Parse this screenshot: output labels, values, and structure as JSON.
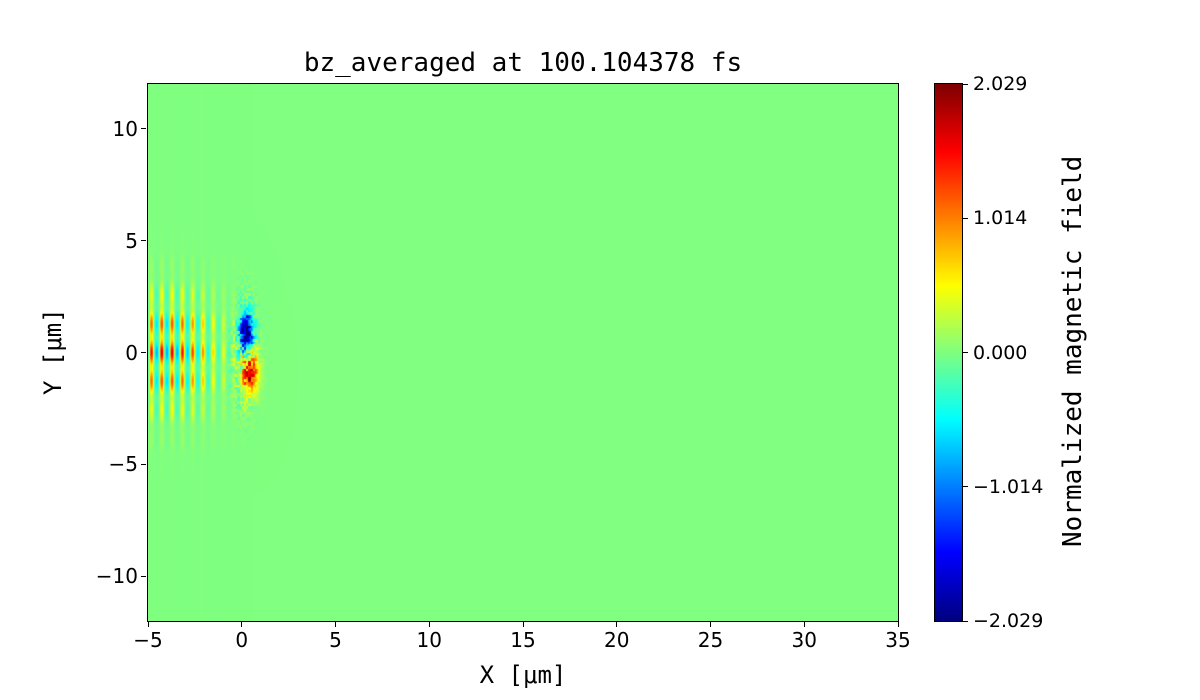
{
  "chart_data": {
    "type": "heatmap",
    "title": "bz_averaged at 100.104378 fs",
    "xlabel": "X [μm]",
    "ylabel": "Y [μm]",
    "xlim": [
      -5,
      35
    ],
    "ylim": [
      -12,
      12
    ],
    "xticks": [
      -5,
      0,
      5,
      10,
      15,
      20,
      25,
      30,
      35
    ],
    "xtick_labels": [
      "−5",
      "0",
      "5",
      "10",
      "15",
      "20",
      "25",
      "30",
      "35"
    ],
    "yticks": [
      10,
      5,
      0,
      -5,
      -10
    ],
    "ytick_labels": [
      "10",
      "5",
      "0",
      "−5",
      "−10"
    ],
    "grid": false,
    "colorbar": {
      "label": "Normalized magnetic field",
      "colormap": "jet",
      "vmin": -2.029,
      "vmax": 2.029,
      "ticks": [
        2.029,
        1.014,
        0.0,
        -1.014,
        -2.029
      ],
      "tick_labels": [
        "2.029",
        "1.014",
        "0.000",
        "−1.014",
        "−2.029"
      ]
    },
    "field": {
      "background_value": 0,
      "pulse": {
        "x_center": -4.0,
        "x_sigma": 2.6,
        "y_sigma": 2.4,
        "wavelength": 0.55,
        "amplitude": 1.7,
        "negative_scale": 0.5,
        "x_cutoff": 0.6,
        "y_mod_period": 1.35,
        "y_mod_depth": 0.3
      },
      "blobs": [
        {
          "x": 0.25,
          "y": 0.9,
          "rx": 0.35,
          "ry": 0.85,
          "value": -2.2
        },
        {
          "x": 0.45,
          "y": -0.9,
          "rx": 0.42,
          "ry": 0.9,
          "value": 1.6
        }
      ],
      "speckle": {
        "x_min": -0.9,
        "x_max": 1.4,
        "y_max": 4.0,
        "x_center": 0.2,
        "x_sigma": 0.6,
        "y_sigma": 2.2,
        "amplitude": 1.8,
        "cell": 0.12
      }
    }
  }
}
